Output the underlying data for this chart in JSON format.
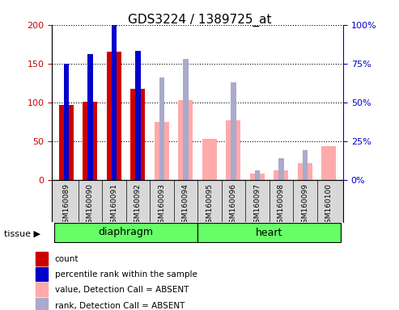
{
  "title": "GDS3224 / 1389725_at",
  "samples": [
    "GSM160089",
    "GSM160090",
    "GSM160091",
    "GSM160092",
    "GSM160093",
    "GSM160094",
    "GSM160095",
    "GSM160096",
    "GSM160097",
    "GSM160098",
    "GSM160099",
    "GSM160100"
  ],
  "groups": {
    "diaphragm": [
      0,
      1,
      2,
      3,
      4,
      5
    ],
    "heart": [
      6,
      7,
      8,
      9,
      10,
      11
    ]
  },
  "count_values": [
    97,
    101,
    165,
    117,
    0,
    0,
    0,
    0,
    0,
    0,
    0,
    0
  ],
  "rank_values": [
    75,
    81,
    100,
    83,
    0,
    0,
    0,
    0,
    0,
    0,
    0,
    0
  ],
  "absent_value": [
    0,
    0,
    0,
    0,
    75,
    103,
    53,
    77,
    8,
    12,
    22,
    43
  ],
  "absent_rank": [
    0,
    0,
    0,
    0,
    66,
    78,
    0,
    63,
    6,
    14,
    19,
    0
  ],
  "ylim_left": [
    0,
    200
  ],
  "ylim_right": [
    0,
    100
  ],
  "yticks_left": [
    0,
    50,
    100,
    150,
    200
  ],
  "yticks_right": [
    0,
    25,
    50,
    75,
    100
  ],
  "ytick_labels_right": [
    "0%",
    "25%",
    "50%",
    "75%",
    "100%"
  ],
  "color_count": "#cc0000",
  "color_rank": "#0000cc",
  "color_absent_value": "#ffaaaa",
  "color_absent_rank": "#aaaacc",
  "group_color": "#66ff66",
  "tissue_label": "tissue",
  "diaphragm_label": "diaphragm",
  "heart_label": "heart",
  "legend_items": [
    {
      "label": "count",
      "color": "#cc0000"
    },
    {
      "label": "percentile rank within the sample",
      "color": "#0000cc"
    },
    {
      "label": "value, Detection Call = ABSENT",
      "color": "#ffaaaa"
    },
    {
      "label": "rank, Detection Call = ABSENT",
      "color": "#aaaacc"
    }
  ]
}
